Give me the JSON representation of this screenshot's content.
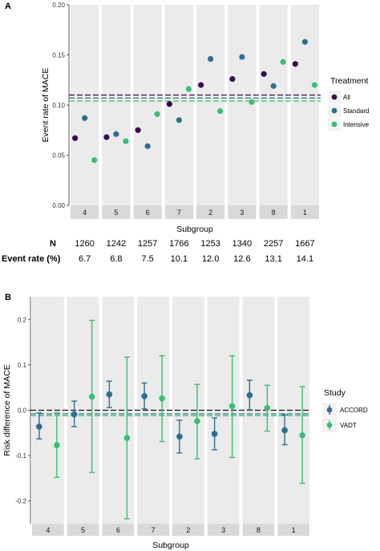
{
  "chart_data": [
    {
      "panel": "A",
      "type": "scatter",
      "xlabel": "Subgroup",
      "ylabel": "Event rate of MACE",
      "categories": [
        "4",
        "5",
        "6",
        "7",
        "2",
        "3",
        "8",
        "1"
      ],
      "ylim": [
        0,
        0.2
      ],
      "yticks": [
        "0.00",
        "0.05",
        "0.10",
        "0.15",
        "0.20"
      ],
      "grid": false,
      "legend": {
        "title": "Treatment",
        "position": "right"
      },
      "series": [
        {
          "name": "All",
          "color": "#3d0a4f",
          "values": [
            0.067,
            0.068,
            0.075,
            0.101,
            0.12,
            0.126,
            0.131,
            0.141
          ],
          "overall": 0.11
        },
        {
          "name": "Standard",
          "color": "#2e6f8e",
          "values": [
            0.087,
            0.071,
            0.059,
            0.085,
            0.146,
            0.148,
            0.119,
            0.163
          ],
          "overall": 0.107
        },
        {
          "name": "Intensive",
          "color": "#3dbc74",
          "values": [
            0.045,
            0.064,
            0.091,
            0.116,
            0.094,
            0.103,
            0.143,
            0.12
          ],
          "overall": 0.104
        }
      ],
      "table": {
        "rows": [
          {
            "label": "N",
            "values": [
              "1260",
              "1242",
              "1257",
              "1766",
              "1253",
              "1340",
              "2257",
              "1667"
            ]
          },
          {
            "label": "Event rate (%)",
            "values": [
              "6.7",
              "6.8",
              "7.5",
              "10.1",
              "12.0",
              "12.6",
              "13.1",
              "14.1"
            ]
          }
        ]
      }
    },
    {
      "panel": "B",
      "type": "scatter",
      "xlabel": "Subgroup",
      "ylabel": "Risk difference of MACE",
      "categories": [
        "4",
        "5",
        "6",
        "7",
        "2",
        "3",
        "8",
        "1"
      ],
      "ylim": [
        -0.25,
        0.25
      ],
      "yticks": [
        "-0.2",
        "-0.1",
        "0.0",
        "0.1",
        "0.2"
      ],
      "ytick_values": [
        -0.2,
        -0.1,
        0.0,
        0.1,
        0.2
      ],
      "grid": false,
      "legend": {
        "title": "Study",
        "position": "right"
      },
      "zero_line": 0.0,
      "series": [
        {
          "name": "ACCORD",
          "color": "#2e6f8e",
          "values": [
            -0.036,
            -0.009,
            0.035,
            0.031,
            -0.058,
            -0.052,
            0.033,
            -0.044
          ],
          "lower": [
            -0.063,
            -0.036,
            0.006,
            0.003,
            -0.094,
            -0.087,
            0.001,
            -0.076
          ],
          "upper": [
            -0.006,
            0.02,
            0.064,
            0.06,
            -0.022,
            -0.017,
            0.066,
            -0.01
          ],
          "overall": -0.008
        },
        {
          "name": "VADT",
          "color": "#3dbc74",
          "values": [
            -0.077,
            0.03,
            -0.061,
            0.026,
            -0.024,
            0.009,
            0.005,
            -0.055
          ],
          "lower": [
            -0.148,
            -0.137,
            -0.239,
            -0.069,
            -0.107,
            -0.104,
            -0.046,
            -0.161
          ],
          "upper": [
            -0.006,
            0.198,
            0.117,
            0.12,
            0.057,
            0.12,
            0.055,
            0.052
          ],
          "overall": -0.012
        }
      ]
    }
  ]
}
